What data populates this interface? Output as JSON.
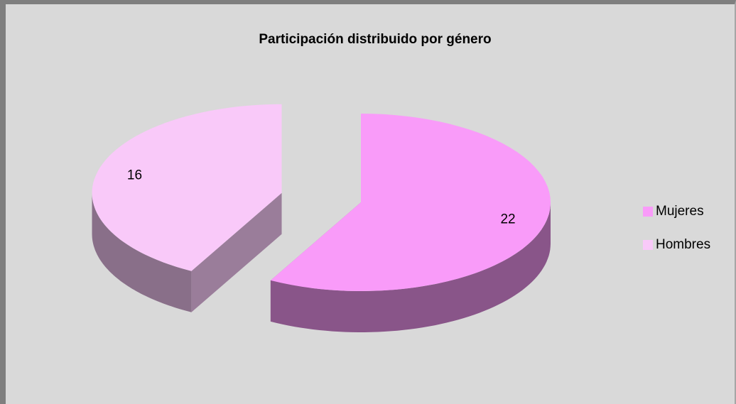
{
  "chart_data": {
    "type": "pie",
    "title": "Participación distribuido por género",
    "categories": [
      "Mujeres",
      "Hombres"
    ],
    "values": [
      22,
      16
    ],
    "colors": [
      "#f99bf9",
      "#f9c9f9"
    ],
    "legend": "right"
  }
}
